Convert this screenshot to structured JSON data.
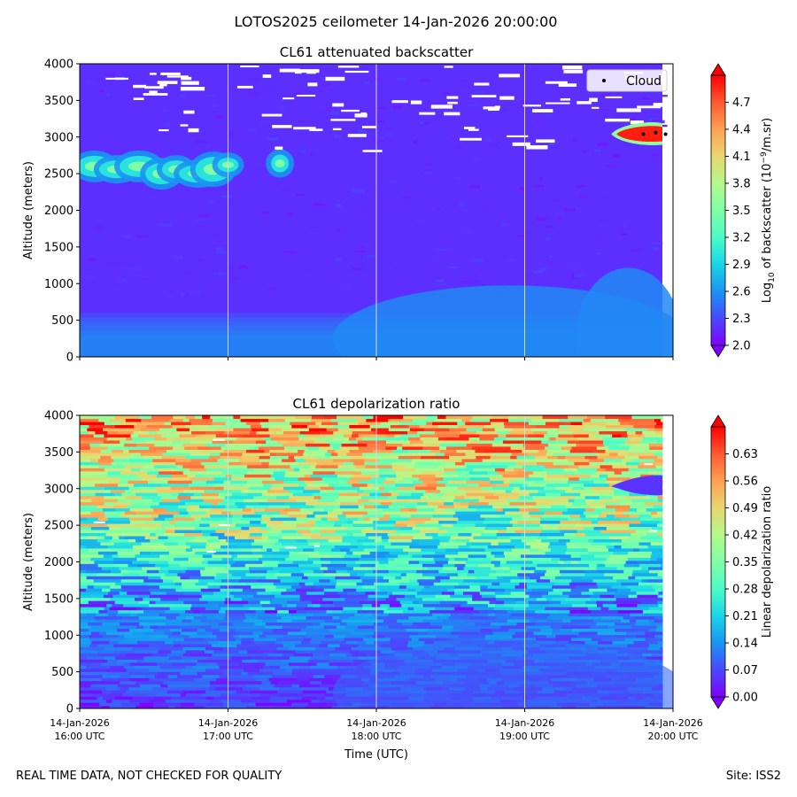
{
  "suptitle": "LOTOS2025 ceilometer 14-Jan-2026 20:00:00",
  "footer_left": "REAL TIME DATA, NOT CHECKED FOR QUALITY",
  "footer_right": "Site: ISS2",
  "colormap": [
    "#8000ff",
    "#4b47fd",
    "#1995f2",
    "#19d5e8",
    "#4bfcc6",
    "#80fea6",
    "#b3f98a",
    "#e7d76e",
    "#ffa153",
    "#ff5931",
    "#ff0000"
  ],
  "colors": {
    "gridline": "#d9d9d9",
    "cloud_marker": "#000000",
    "missing_data": "#ffffff"
  },
  "chart_data": [
    {
      "type": "heatmap",
      "title": "CL61 attenuated backscatter",
      "xlabel": "",
      "ylabel": "Altitude (meters)",
      "xlim": [
        "14-Jan-2026 16:00",
        "14-Jan-2026 20:00"
      ],
      "ylim": [
        0,
        4000
      ],
      "xticks": [
        {
          "date": "14-Jan-2026",
          "time": "16:00 UTC"
        },
        {
          "date": "14-Jan-2026",
          "time": "17:00 UTC"
        },
        {
          "date": "14-Jan-2026",
          "time": "18:00 UTC"
        },
        {
          "date": "14-Jan-2026",
          "time": "19:00 UTC"
        },
        {
          "date": "14-Jan-2026",
          "time": "20:00 UTC"
        }
      ],
      "xtick_labels_visible": false,
      "yticks": [
        "0",
        "500",
        "1000",
        "1500",
        "2000",
        "2500",
        "3000",
        "3500",
        "4000"
      ],
      "grid": "vertical lines at hour ticks",
      "colorbar": {
        "label_main": "Log",
        "label_sub": "10",
        "label_rest": " of backscatter (10",
        "label_sup": "−9",
        "label_end": "/m.sr)",
        "range": [
          2.0,
          5.0
        ],
        "ticks": [
          "2.0",
          "2.3",
          "2.6",
          "2.9",
          "3.2",
          "3.5",
          "3.8",
          "4.1",
          "4.4",
          "4.7"
        ],
        "extend": "both"
      },
      "legend": {
        "position": "top-right",
        "entries": [
          {
            "label": "Cloud",
            "marker": "dot"
          }
        ]
      },
      "features": [
        {
          "name": "aerosol layer 2400-2700 m",
          "time_range": [
            "16:05",
            "17:20"
          ],
          "value": 3.0
        },
        {
          "name": "boundary layer",
          "altitude_range": [
            0,
            600
          ],
          "value": 2.45
        },
        {
          "name": "cloud layer ~3050 m",
          "time_range": [
            "19:35",
            "20:00"
          ],
          "value": 4.9
        }
      ],
      "cloud_detections": [
        {
          "time": "19:48",
          "altitude": 3040
        },
        {
          "time": "19:53",
          "altitude": 3060
        },
        {
          "time": "19:57",
          "altitude": 3040
        }
      ]
    },
    {
      "type": "heatmap",
      "title": "CL61 depolarization ratio",
      "xlabel": "Time (UTC)",
      "ylabel": "Altitude (meters)",
      "xlim": [
        "14-Jan-2026 16:00",
        "14-Jan-2026 20:00"
      ],
      "ylim": [
        0,
        4000
      ],
      "xticks": [
        {
          "date": "14-Jan-2026",
          "time": "16:00 UTC"
        },
        {
          "date": "14-Jan-2026",
          "time": "17:00 UTC"
        },
        {
          "date": "14-Jan-2026",
          "time": "18:00 UTC"
        },
        {
          "date": "14-Jan-2026",
          "time": "19:00 UTC"
        },
        {
          "date": "14-Jan-2026",
          "time": "20:00 UTC"
        }
      ],
      "xtick_labels_visible": true,
      "yticks": [
        "0",
        "500",
        "1000",
        "1500",
        "2000",
        "2500",
        "3000",
        "3500",
        "4000"
      ],
      "grid": "vertical lines at hour ticks",
      "colorbar": {
        "label": "Linear depolarization ratio",
        "range": [
          0.0,
          0.7
        ],
        "ticks": [
          "0.00",
          "0.07",
          "0.14",
          "0.21",
          "0.28",
          "0.35",
          "0.42",
          "0.49",
          "0.56",
          "0.63"
        ],
        "extend": "both"
      },
      "features": [
        {
          "name": "low depolarization near surface",
          "altitude_range": [
            0,
            1300
          ],
          "value": 0.06
        },
        {
          "name": "mid-level transition",
          "altitude_range": [
            1300,
            2300
          ],
          "value": 0.27
        },
        {
          "name": "noisy upper levels",
          "altitude_range": [
            2300,
            4000
          ],
          "value": 0.45
        },
        {
          "name": "cloud layer low depolarization",
          "time_range": [
            "19:35",
            "20:00"
          ],
          "altitude_range": [
            2950,
            3100
          ],
          "value": 0.05
        }
      ]
    }
  ]
}
